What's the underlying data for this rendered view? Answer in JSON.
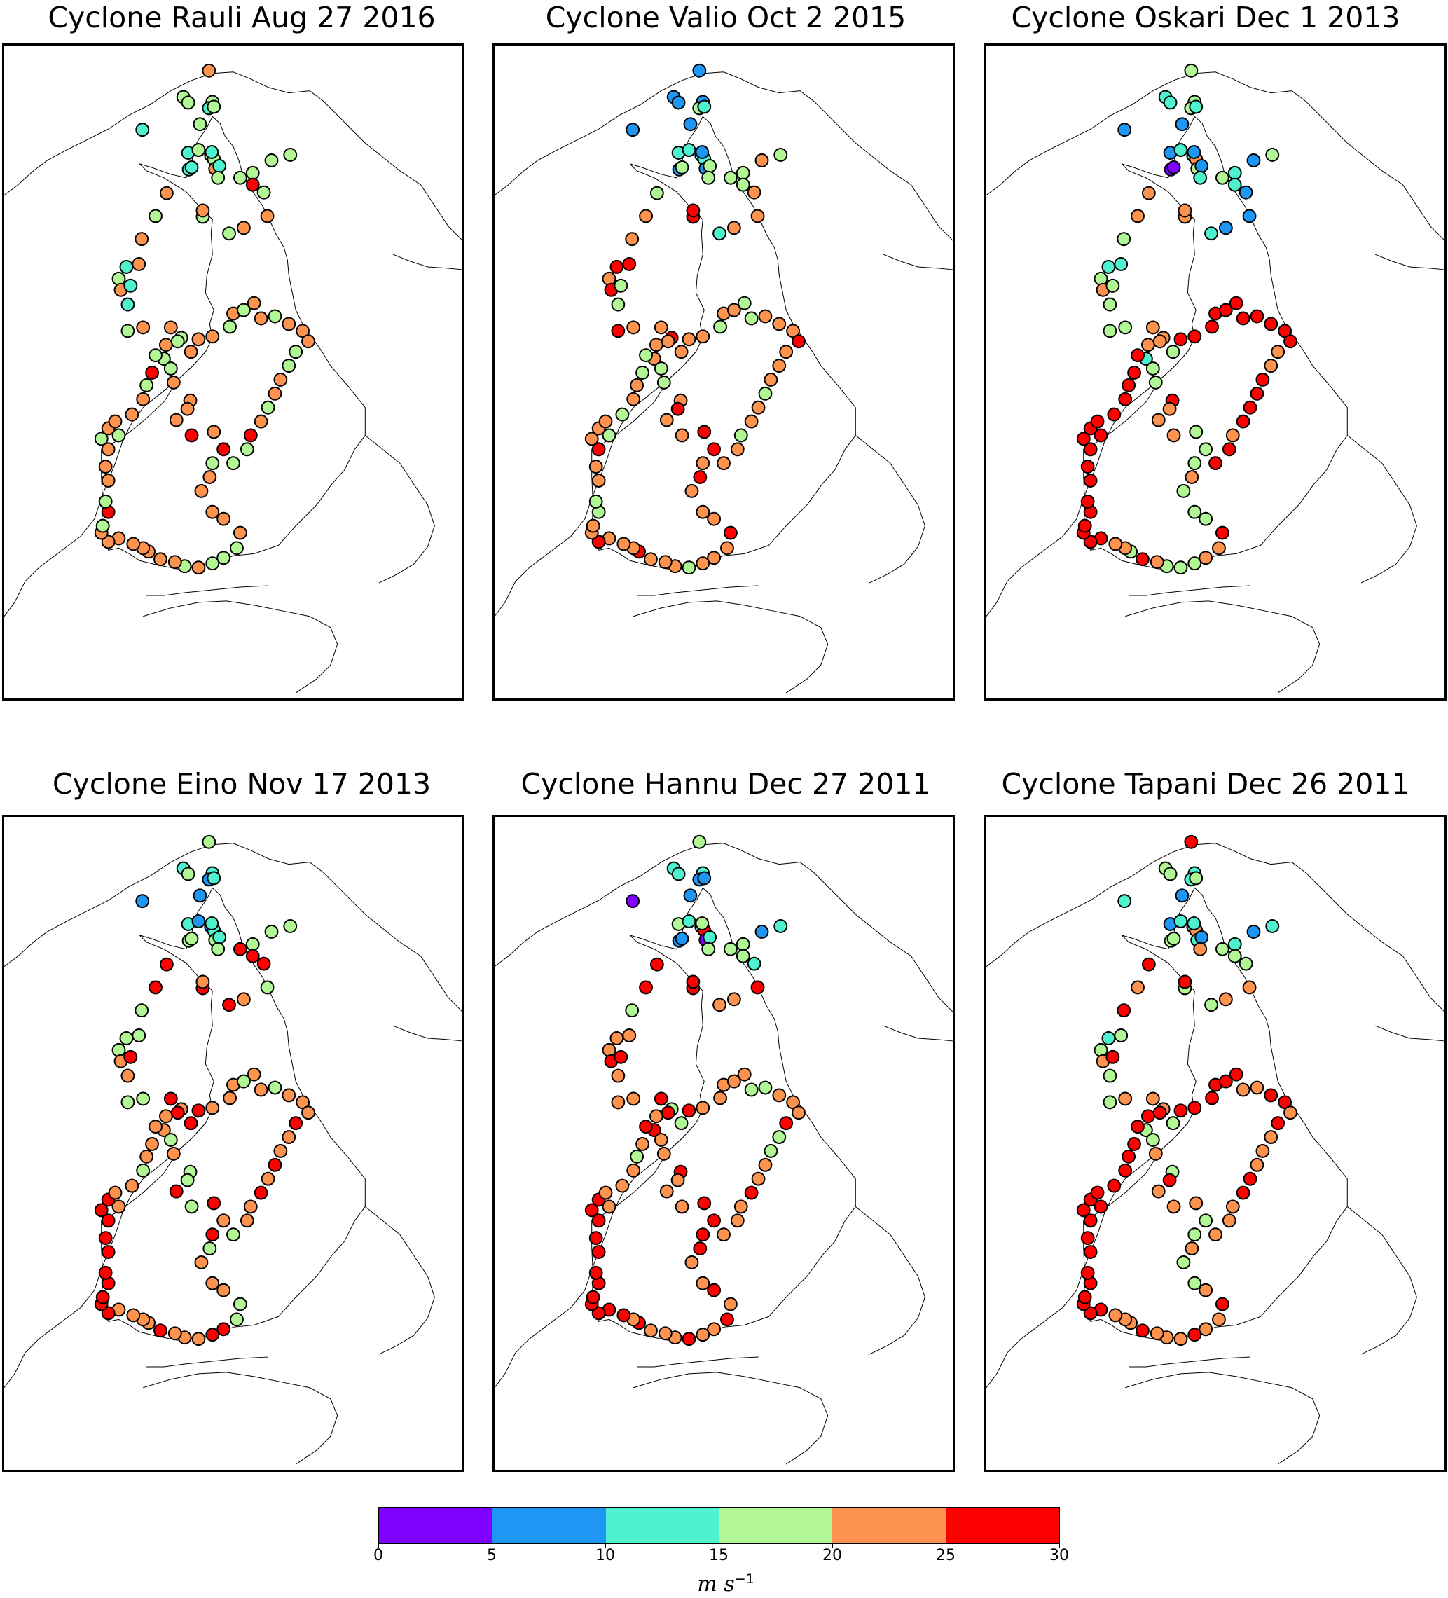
{
  "panels": [
    {
      "title": "Cyclone Rauli Aug 27 2016",
      "map_name": "Finland weather stations, cyclone Rauli"
    },
    {
      "title": "Cyclone Valio Oct 2 2015",
      "map_name": "Finland weather stations, cyclone Valio"
    },
    {
      "title": "Cyclone Oskari Dec 1 2013",
      "map_name": "Finland weather stations, cyclone Oskari"
    },
    {
      "title": "Cyclone Eino Nov 17 2013",
      "map_name": "Finland weather stations, cyclone Eino"
    },
    {
      "title": "Cyclone Hannu Dec 27 2011",
      "map_name": "Finland weather stations, cyclone Hannu"
    },
    {
      "title": "Cyclone Tapani Dec 26 2011",
      "map_name": "Finland weather stations, cyclone Tapani"
    }
  ],
  "colorbar": {
    "unit_base": "m s",
    "unit_exp": "−1",
    "ticks": [
      "0",
      "5",
      "10",
      "15",
      "20",
      "25",
      "30"
    ],
    "bins": [
      {
        "range": "0-5",
        "color": "#8000ff"
      },
      {
        "range": "5-10",
        "color": "#1e96f3"
      },
      {
        "range": "10-15",
        "color": "#4ff2cf"
      },
      {
        "range": "15-20",
        "color": "#b1f796"
      },
      {
        "range": "20-25",
        "color": "#fe9350"
      },
      {
        "range": "25-30",
        "color": "#ff0000"
      }
    ]
  },
  "stations_by_panel": [
    [
      4,
      3,
      3,
      3,
      2,
      3,
      2,
      3,
      2,
      3,
      3,
      3,
      2,
      2,
      4,
      2,
      2,
      3,
      3,
      3,
      3,
      3,
      5,
      3,
      4,
      4,
      3,
      3,
      4,
      4,
      3,
      4,
      4,
      2,
      3,
      4,
      2,
      2,
      3,
      4,
      4,
      3,
      4,
      3,
      3,
      4,
      4,
      4,
      4,
      5,
      4,
      5,
      3,
      4,
      4,
      4,
      4,
      4,
      3,
      3,
      3,
      4,
      3,
      4,
      4,
      4,
      4,
      4,
      4,
      4,
      4,
      3,
      5,
      3,
      4,
      4,
      4,
      3,
      4,
      3,
      4,
      4,
      4,
      3,
      5,
      3,
      4,
      3,
      4,
      4,
      3,
      4,
      3,
      4,
      4,
      3,
      4,
      4,
      4,
      3,
      3,
      4,
      4,
      3,
      4,
      5,
      3,
      3
    ],
    [
      1,
      1,
      1,
      1,
      3,
      2,
      1,
      1,
      2,
      2,
      2,
      2,
      1,
      3,
      1,
      1,
      3,
      4,
      3,
      3,
      3,
      3,
      3,
      4,
      4,
      4,
      2,
      5,
      5,
      3,
      4,
      4,
      5,
      5,
      4,
      5,
      3,
      3,
      5,
      4,
      4,
      5,
      4,
      4,
      3,
      3,
      4,
      5,
      4,
      4,
      5,
      5,
      4,
      5,
      4,
      4,
      4,
      5,
      4,
      4,
      4,
      3,
      4,
      4,
      4,
      5,
      4,
      4,
      4,
      5,
      4,
      4,
      3,
      3,
      4,
      4,
      5,
      4,
      4,
      3,
      4,
      3,
      4,
      4,
      3,
      3,
      4,
      4,
      4,
      4,
      3,
      4,
      4,
      3,
      3,
      4,
      4,
      4,
      5,
      4,
      4,
      4,
      3,
      4,
      4,
      3,
      4,
      4
    ],
    [
      3,
      2,
      2,
      3,
      3,
      2,
      1,
      1,
      1,
      2,
      2,
      4,
      0,
      0,
      3,
      1,
      1,
      1,
      3,
      2,
      3,
      2,
      2,
      1,
      1,
      1,
      2,
      4,
      4,
      4,
      4,
      3,
      2,
      2,
      3,
      4,
      3,
      3,
      3,
      3,
      4,
      4,
      3,
      2,
      3,
      3,
      5,
      4,
      4,
      4,
      3,
      3,
      3,
      4,
      3,
      3,
      3,
      5,
      4,
      4,
      3,
      3,
      3,
      4,
      5,
      3,
      4,
      4,
      5,
      5,
      5,
      5,
      5,
      5,
      5,
      5,
      5,
      5,
      5,
      5,
      5,
      5,
      5,
      5,
      5,
      5,
      4,
      4,
      5,
      5,
      5,
      5,
      5,
      5,
      5,
      5,
      5,
      5,
      5,
      4,
      4,
      5,
      5,
      5,
      5,
      4,
      5,
      5
    ],
    [
      3,
      2,
      3,
      2,
      1,
      2,
      1,
      1,
      2,
      1,
      1,
      2,
      3,
      3,
      3,
      2,
      2,
      3,
      3,
      3,
      5,
      3,
      5,
      5,
      3,
      4,
      5,
      5,
      4,
      5,
      5,
      3,
      3,
      3,
      3,
      4,
      5,
      4,
      3,
      3,
      5,
      4,
      5,
      4,
      3,
      4,
      3,
      3,
      5,
      3,
      5,
      4,
      5,
      3,
      4,
      4,
      4,
      3,
      3,
      5,
      5,
      4,
      4,
      4,
      5,
      4,
      4,
      4,
      4,
      5,
      5,
      5,
      5,
      5,
      5,
      5,
      5,
      5,
      5,
      4,
      4,
      4,
      3,
      4,
      4,
      4,
      4,
      5,
      5,
      4,
      4,
      4,
      3,
      4,
      4,
      3,
      4,
      4,
      4,
      5,
      4,
      4,
      5,
      4,
      5,
      4,
      4,
      3
    ],
    [
      3,
      2,
      2,
      2,
      1,
      1,
      0,
      1,
      3,
      2,
      2,
      5,
      1,
      1,
      0,
      3,
      2,
      1,
      2,
      3,
      3,
      3,
      3,
      2,
      5,
      4,
      4,
      5,
      5,
      5,
      5,
      3,
      4,
      4,
      4,
      5,
      5,
      4,
      4,
      4,
      5,
      3,
      3,
      5,
      4,
      4,
      5,
      4,
      4,
      4,
      5,
      5,
      5,
      5,
      4,
      4,
      5,
      4,
      5,
      4,
      4,
      5,
      4,
      4,
      4,
      5,
      4,
      5,
      5,
      5,
      5,
      5,
      5,
      5,
      5,
      5,
      5,
      5,
      5,
      4,
      4,
      4,
      4,
      3,
      4,
      5,
      4,
      5,
      5,
      4,
      4,
      4,
      4,
      4,
      3,
      3,
      4,
      4,
      4,
      5,
      3,
      3,
      4,
      4,
      5,
      4,
      4,
      4
    ],
    [
      5,
      3,
      3,
      2,
      2,
      3,
      2,
      1,
      1,
      2,
      2,
      4,
      3,
      3,
      2,
      2,
      1,
      1,
      2,
      4,
      3,
      2,
      3,
      3,
      4,
      4,
      3,
      3,
      5,
      5,
      4,
      5,
      3,
      2,
      3,
      4,
      5,
      3,
      3,
      4,
      4,
      4,
      3,
      3,
      3,
      4,
      3,
      5,
      4,
      4,
      4,
      3,
      3,
      4,
      3,
      3,
      4,
      5,
      4,
      4,
      5,
      4,
      4,
      4,
      5,
      4,
      4,
      4,
      5,
      5,
      5,
      5,
      5,
      5,
      5,
      5,
      5,
      5,
      5,
      5,
      5,
      5,
      5,
      5,
      5,
      5,
      5,
      5,
      5,
      5,
      5,
      5,
      5,
      5,
      4,
      4,
      5,
      5,
      4,
      5,
      4,
      4,
      4,
      5,
      5,
      4,
      4,
      4
    ]
  ]
}
